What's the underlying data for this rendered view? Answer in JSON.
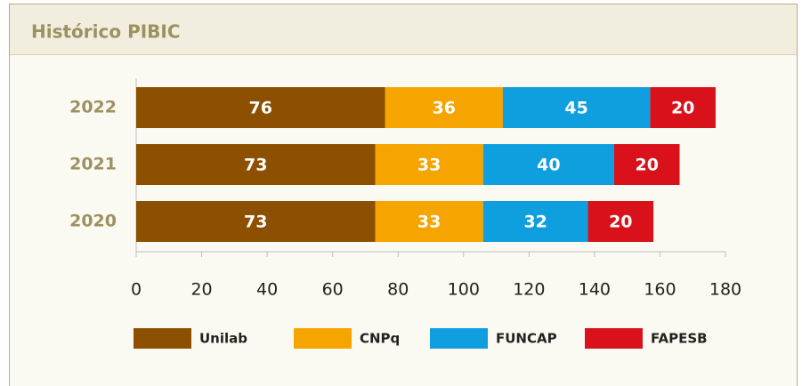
{
  "header": {
    "title": "Histórico PIBIC"
  },
  "chart_data": {
    "type": "stacked_bar_horizontal",
    "categories": [
      "2022",
      "2021",
      "2020"
    ],
    "series": [
      {
        "name": "Unilab",
        "color": "#8c5000",
        "values": [
          76,
          73,
          73
        ]
      },
      {
        "name": "CNPq",
        "color": "#f5a400",
        "values": [
          36,
          33,
          33
        ]
      },
      {
        "name": "FUNCAP",
        "color": "#0f9fdf",
        "values": [
          45,
          40,
          32
        ]
      },
      {
        "name": "FAPESB",
        "color": "#d9111b",
        "values": [
          20,
          20,
          20
        ]
      }
    ],
    "xlim": [
      0,
      180
    ],
    "xticks": [
      0,
      20,
      40,
      60,
      80,
      100,
      120,
      140,
      160,
      180
    ],
    "legend": "bottom"
  }
}
